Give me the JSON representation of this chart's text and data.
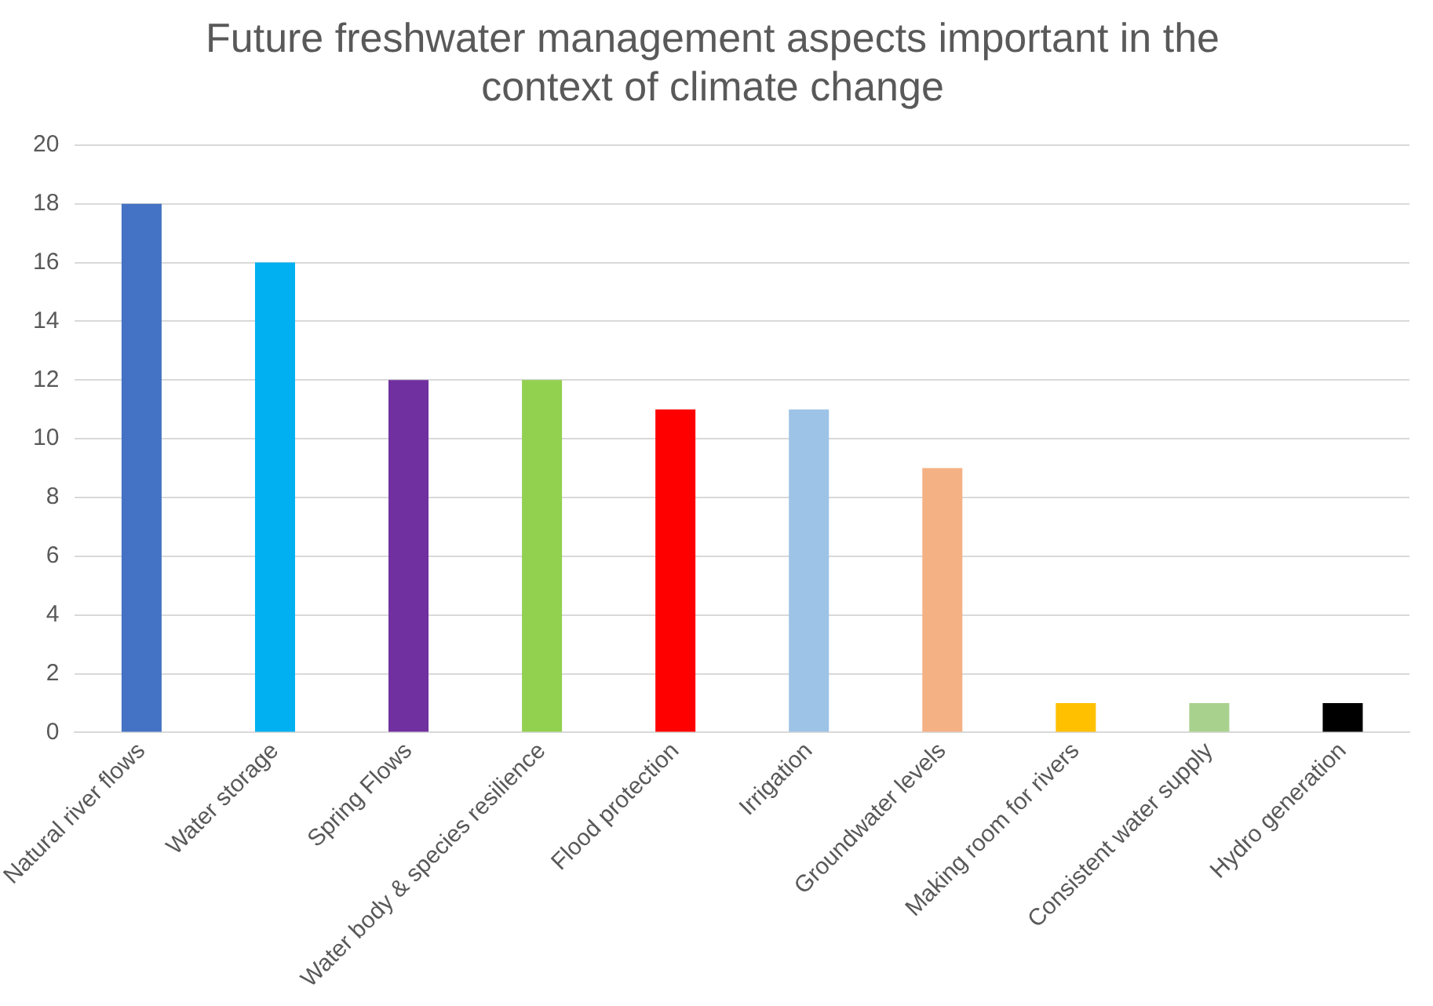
{
  "chart_data": {
    "type": "bar",
    "title": "Future freshwater management aspects important in the context of climate change",
    "categories": [
      "Natural river flows",
      "Water storage",
      "Spring Flows",
      "Water body & species resilience",
      "Flood protection",
      "Irrigation",
      "Groundwater levels",
      "Making room for rivers",
      "Consistent water supply",
      "Hydro generation"
    ],
    "values": [
      18,
      16,
      12,
      12,
      11,
      11,
      9,
      1,
      1,
      1
    ],
    "colors": [
      "#4472c4",
      "#00b0f0",
      "#7030a0",
      "#92d050",
      "#ff0000",
      "#9dc3e6",
      "#f4b183",
      "#ffc000",
      "#a9d18e",
      "#000000"
    ],
    "ylim": [
      0,
      20
    ],
    "yticks": [
      0,
      2,
      4,
      6,
      8,
      10,
      12,
      14,
      16,
      18,
      20
    ],
    "grid": "y",
    "legend": false
  }
}
